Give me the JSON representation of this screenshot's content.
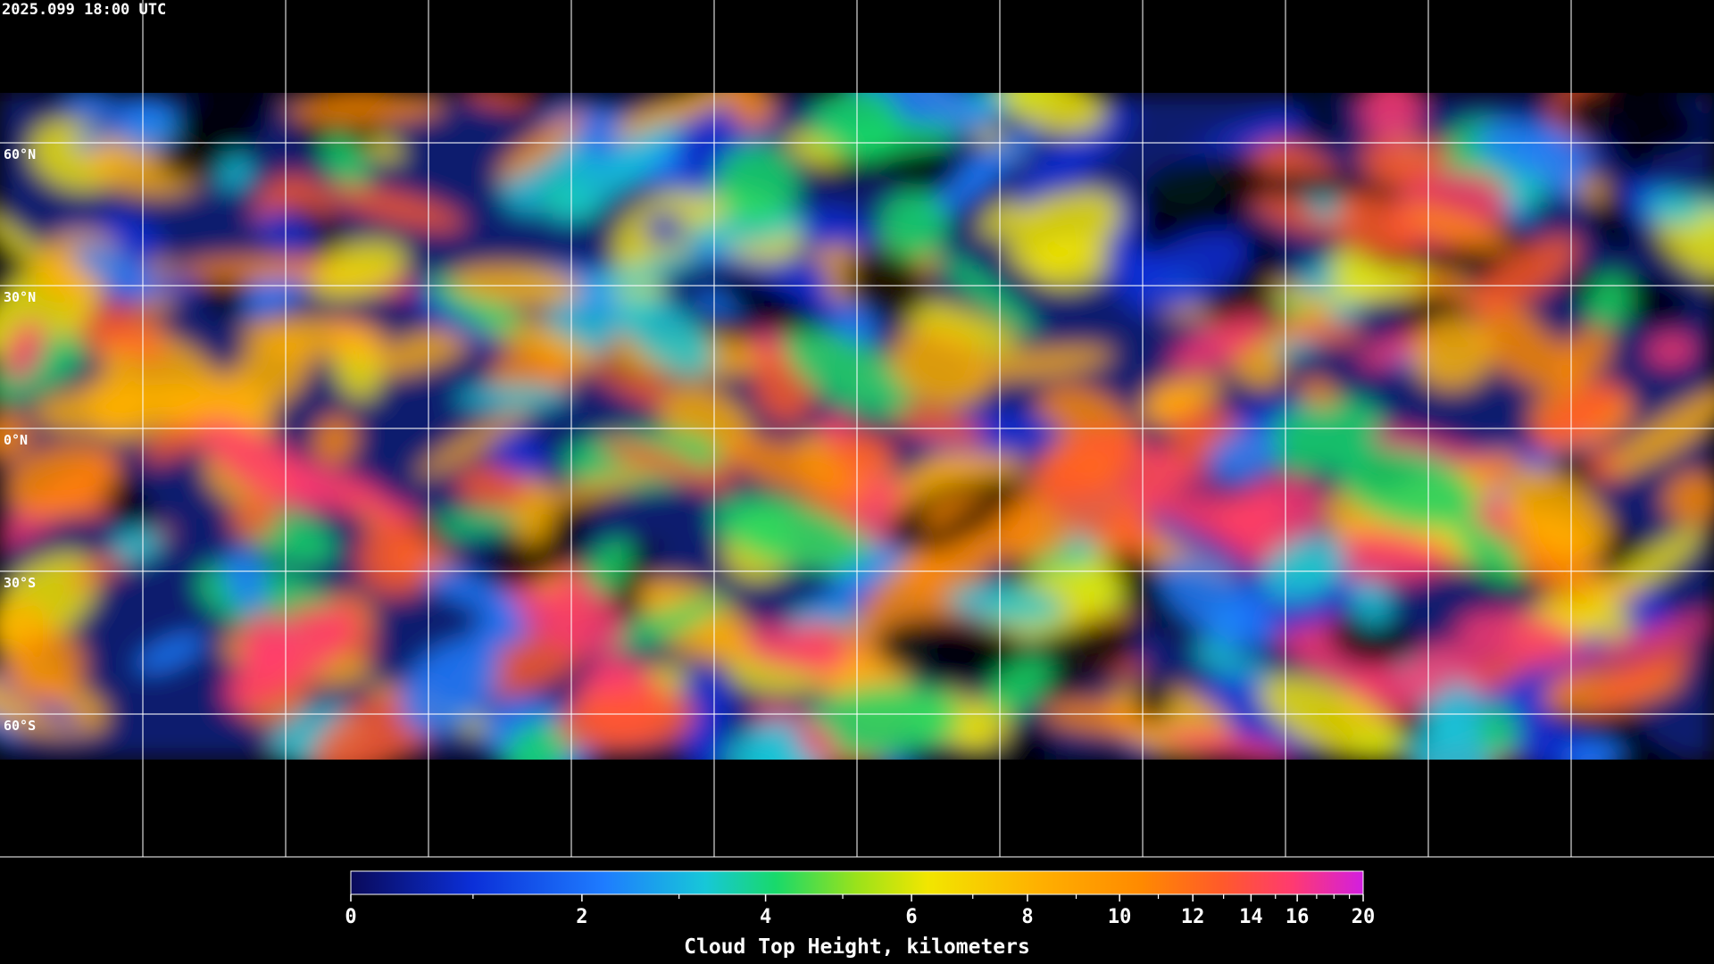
{
  "timestamp": "2025.099 18:00 UTC",
  "map": {
    "latitude_labels": [
      "60°N",
      "30°N",
      "0°N",
      "30°S",
      "60°S"
    ]
  },
  "colorbar": {
    "title": "Cloud Top Height, kilometers",
    "range": [
      0,
      20
    ],
    "ticks": [
      0,
      2,
      4,
      6,
      8,
      10,
      12,
      14,
      16,
      20
    ],
    "minor_ticks": [
      1,
      3,
      5,
      7,
      9,
      11,
      13,
      15,
      17,
      18,
      19
    ]
  }
}
